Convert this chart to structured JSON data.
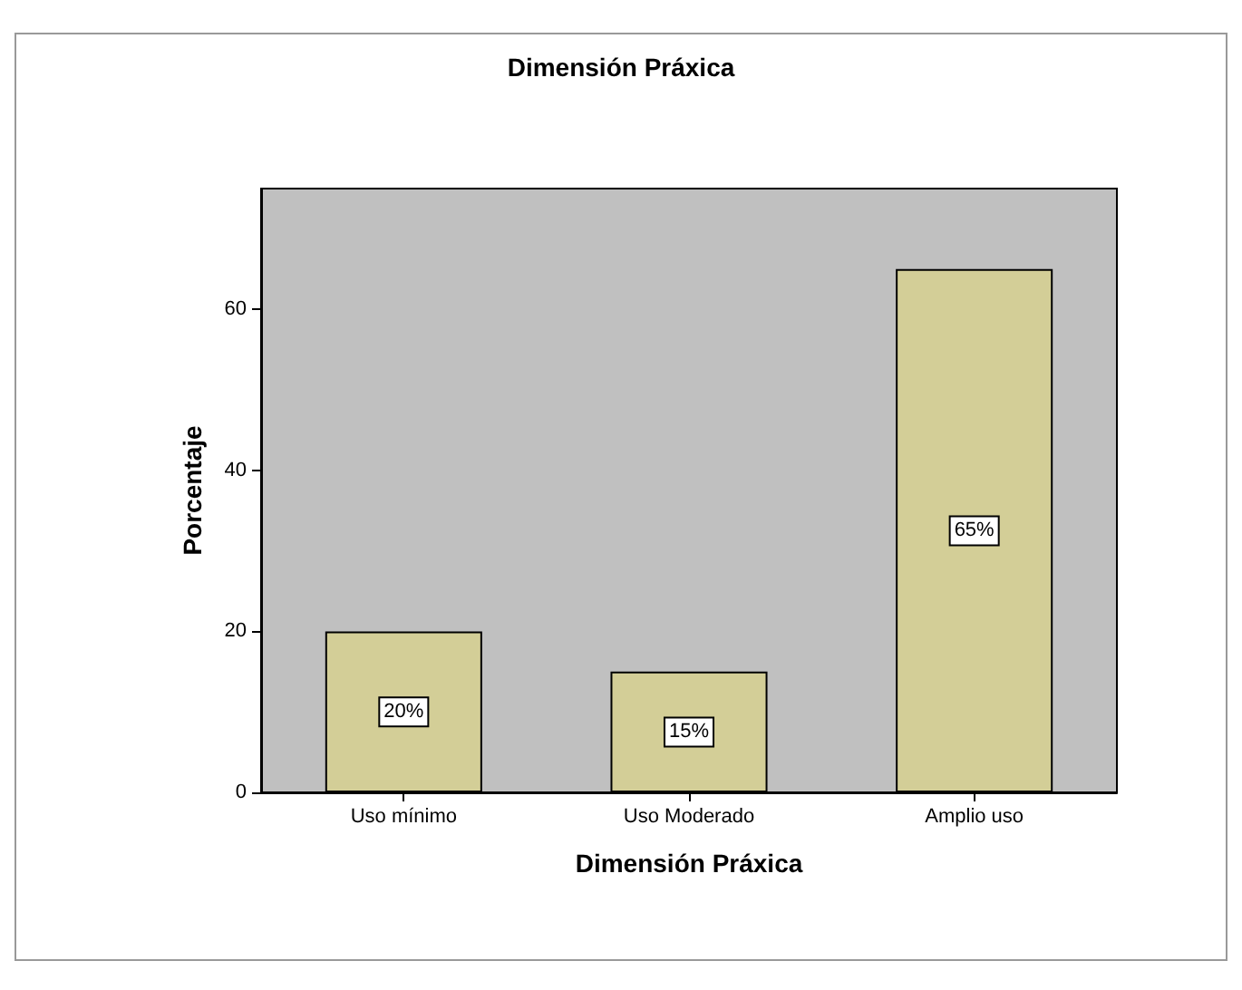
{
  "chart_data": {
    "type": "bar",
    "title": "Dimensión Práxica",
    "xlabel": "Dimensión Práxica",
    "ylabel": "Porcentaje",
    "categories": [
      "Uso mínimo",
      "Uso Moderado",
      "Amplio uso"
    ],
    "values": [
      20,
      15,
      65
    ],
    "color": "#d3ce97",
    "value_labels": [
      "20%",
      "15%",
      "65%"
    ],
    "ylim": [
      0,
      75
    ],
    "yticks": [
      0,
      20,
      40,
      60
    ],
    "grid": false
  }
}
